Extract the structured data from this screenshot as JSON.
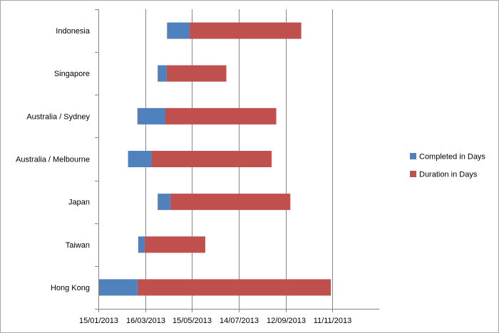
{
  "chart_data": {
    "type": "bar",
    "orientation": "horizontal",
    "stacked": true,
    "title": "",
    "xlabel": "",
    "ylabel": "",
    "categories": [
      "Indonesia",
      "Singapore",
      "Australia / Sydney",
      "Australia / Melbourne",
      "Japan",
      "Taiwan",
      "Hong Kong"
    ],
    "start_dates": [
      "2013-04-13",
      "2013-04-01",
      "2013-03-06",
      "2013-02-22",
      "2013-04-01",
      "2013-03-07",
      "2013-01-15"
    ],
    "series": [
      {
        "name": "Completed in Days",
        "color": "#4f81bd",
        "values": [
          29,
          11,
          35,
          30,
          16,
          8,
          50
        ]
      },
      {
        "name": "Duration in Days",
        "color": "#c0504d",
        "values": [
          143,
          77,
          143,
          154,
          154,
          78,
          248
        ]
      }
    ],
    "x_ticks": [
      "2013-01-15",
      "2013-03-16",
      "2013-05-15",
      "2013-07-14",
      "2013-09-12",
      "2013-11-11"
    ],
    "x_tick_labels": [
      "15/01/2013",
      "16/03/2013",
      "15/05/2013",
      "14/07/2013",
      "12/09/2013",
      "11/11/2013"
    ],
    "xlim": [
      "2013-01-15",
      "2014-01-10"
    ],
    "grid": "vertical",
    "legend_position": "right"
  }
}
